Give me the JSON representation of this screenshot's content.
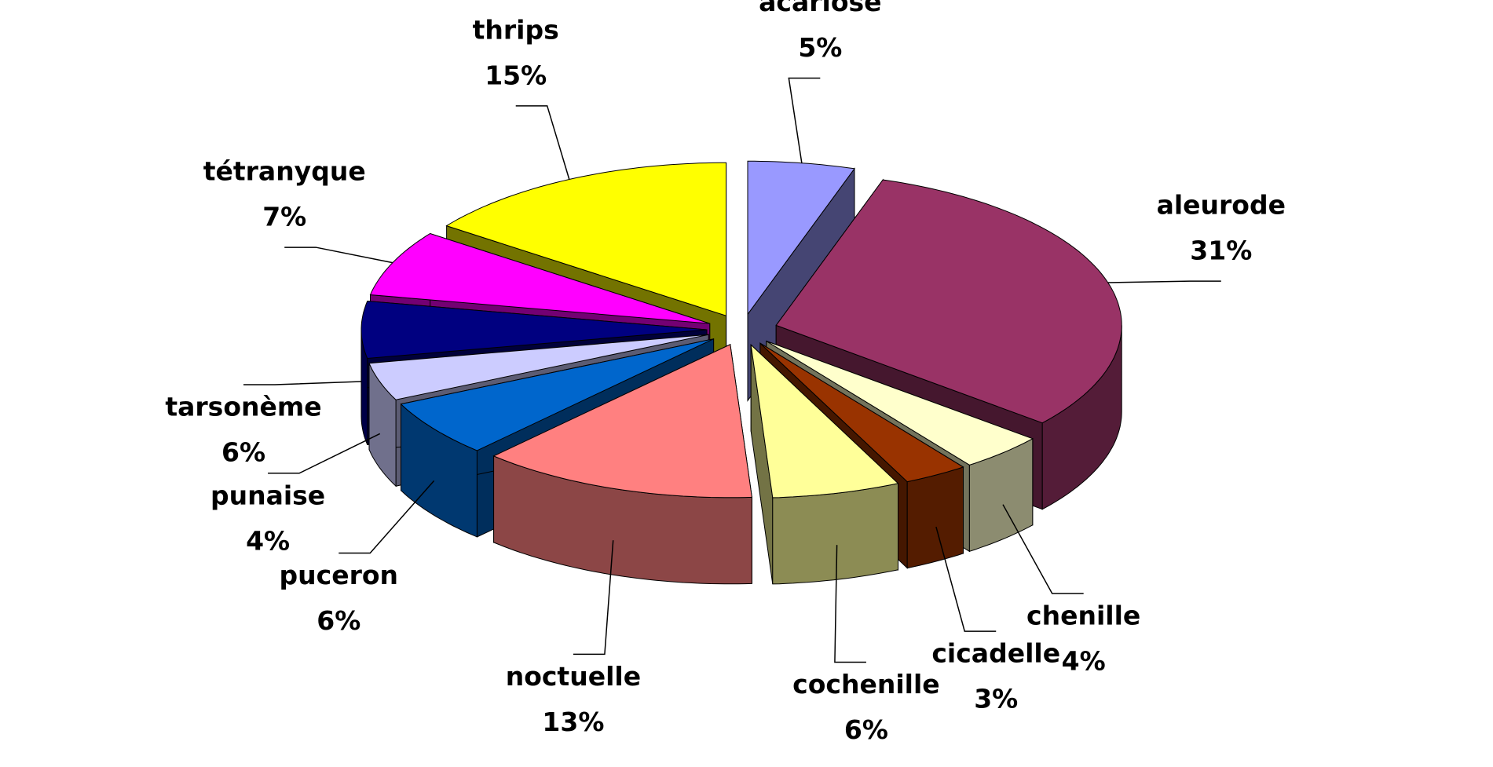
{
  "chart_data": {
    "type": "pie3d",
    "categories": [
      "acariose",
      "aleurode",
      "chenille",
      "cicadelle",
      "cochenille",
      "noctuelle",
      "puceron",
      "punaise",
      "tarsonème",
      "tétranyque",
      "thrips"
    ],
    "values": [
      5,
      31,
      4,
      3,
      6,
      13,
      6,
      4,
      6,
      7,
      15
    ],
    "value_labels": [
      "5%",
      "31%",
      "4%",
      "3%",
      "6%",
      "13%",
      "6%",
      "4%",
      "6%",
      "7%",
      "15%"
    ],
    "colors": [
      "#9999ff",
      "#993366",
      "#ffffcc",
      "#993300",
      "#ffff99",
      "#ff8080",
      "#0066cc",
      "#ccccff",
      "#000080",
      "#ff00ff",
      "#ffff00"
    ]
  }
}
